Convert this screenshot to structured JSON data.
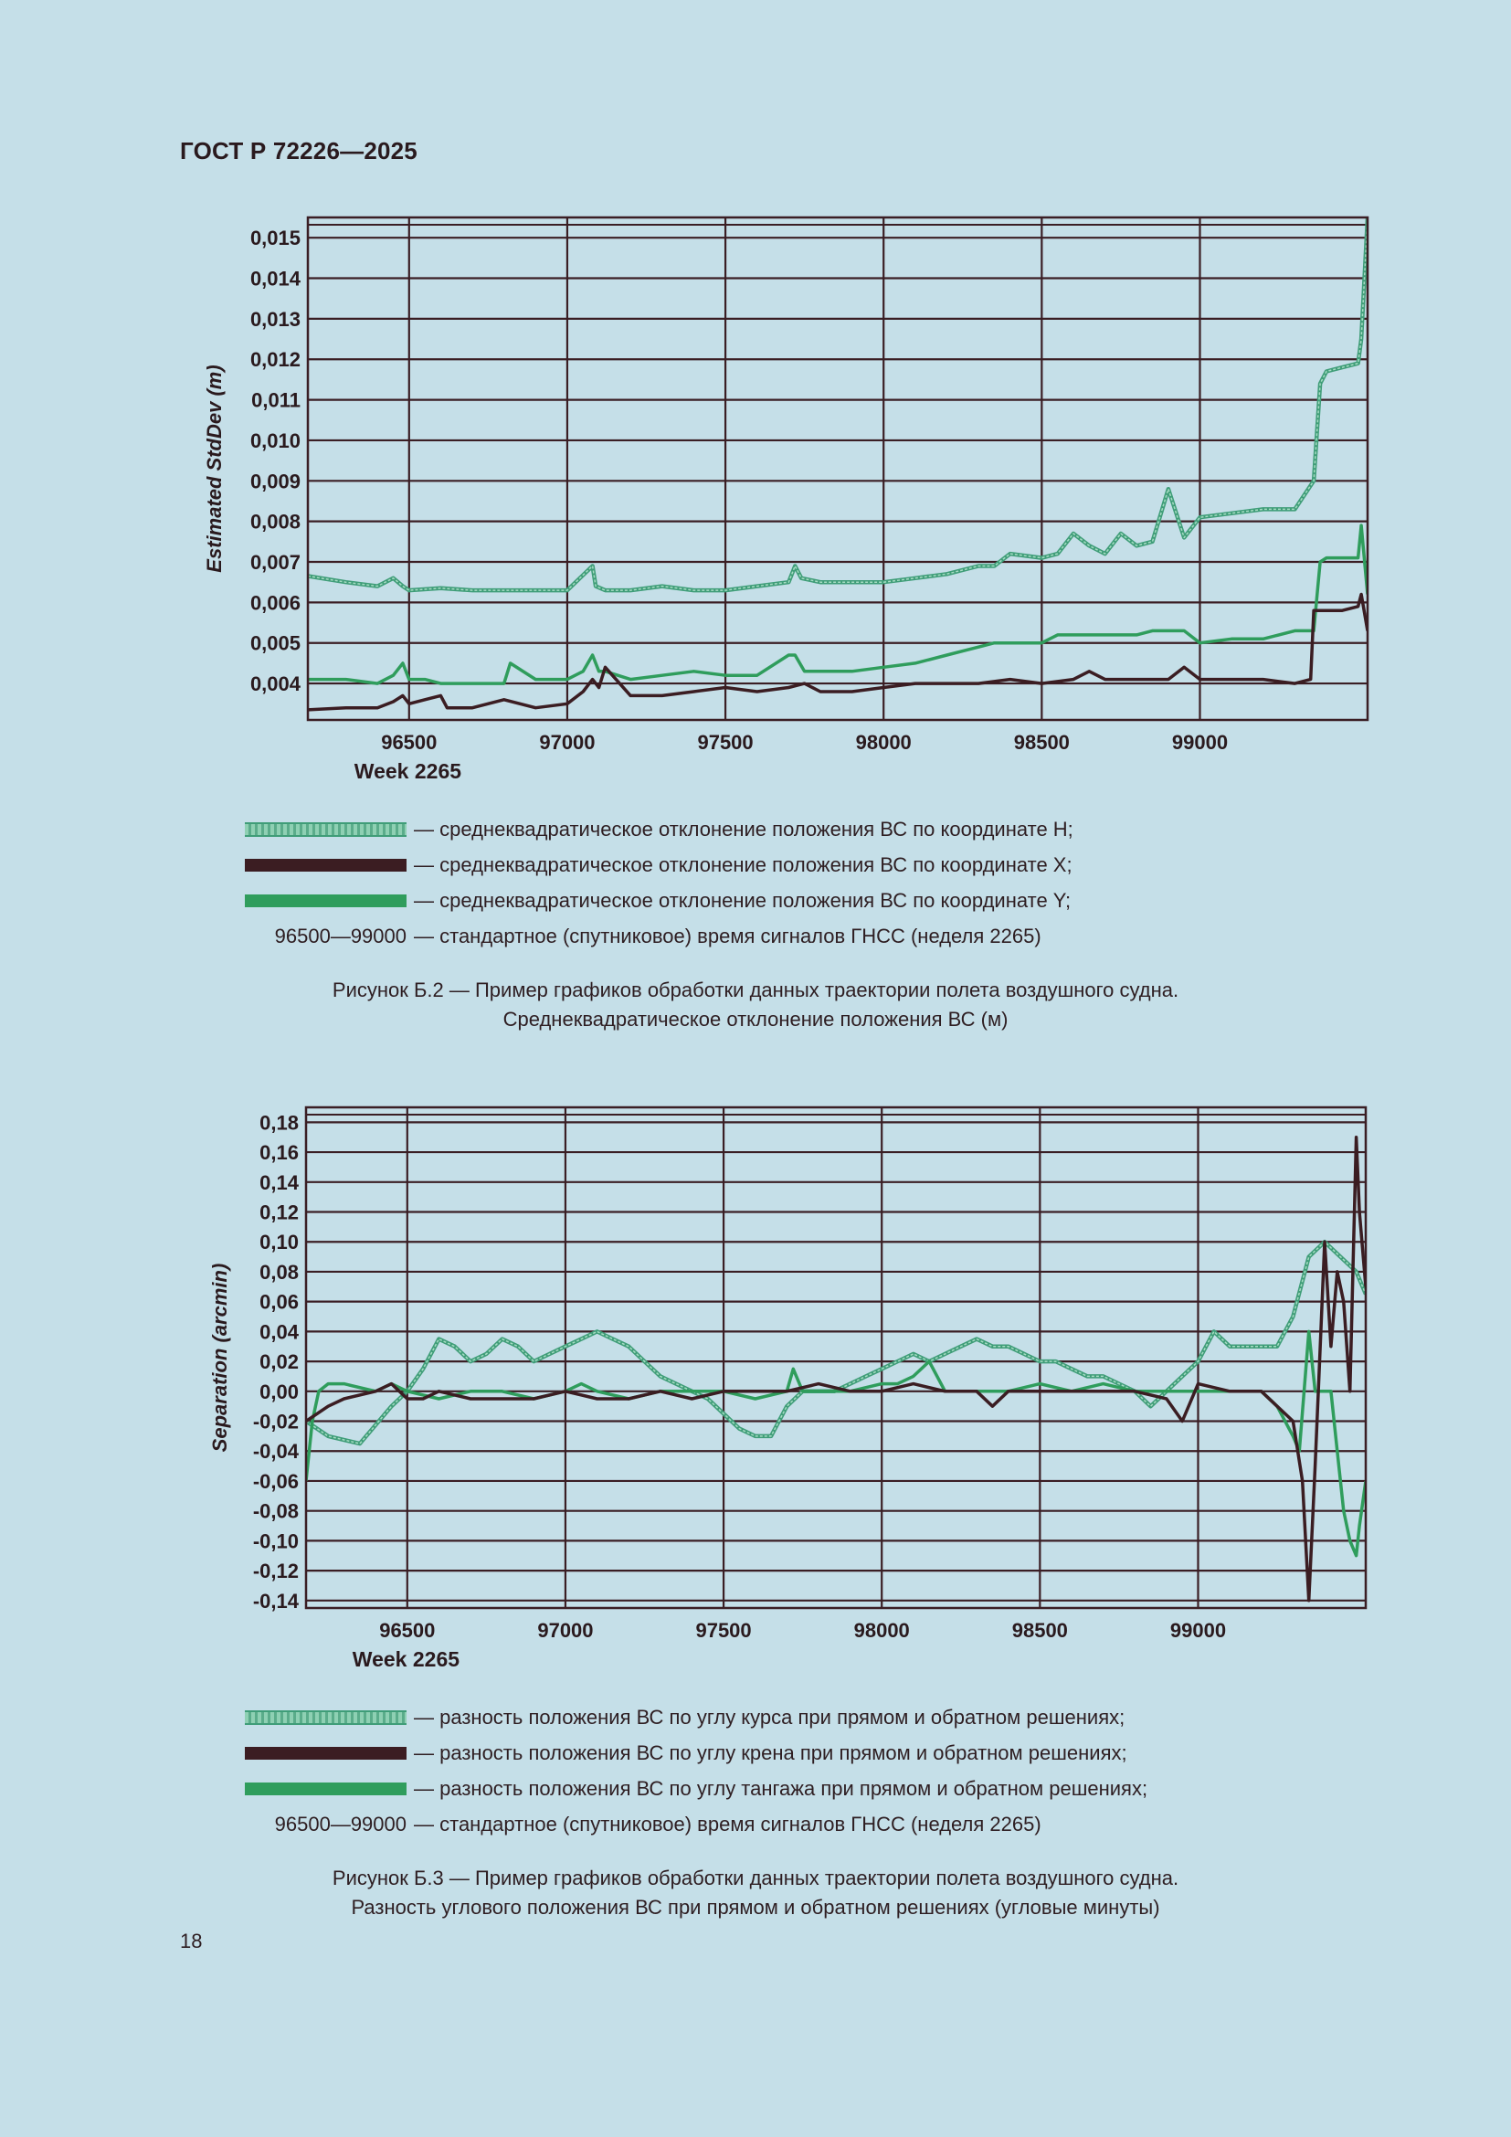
{
  "header": {
    "standard": "ГОСТ Р 72226—2025"
  },
  "page_number": "18",
  "figure_b2": {
    "legend": [
      {
        "key": "swatch-heading",
        "text": "— среднеквадратическое отклонение положения ВС по координате H;"
      },
      {
        "key": "swatch-roll",
        "text": "— среднеквадратическое отклонение положения ВС по координате X;"
      },
      {
        "key": "swatch-pitch",
        "text": "— среднеквадратическое отклонение положения ВС по координате Y;"
      },
      {
        "key": "96500—99000",
        "text": "— стандартное (спутниковое) время сигналов ГНСС (неделя 2265)"
      }
    ],
    "caption_line1": "Рисунок Б.2 — Пример графиков обработки данных траектории полета воздушного судна.",
    "caption_line2": "Среднеквадратическое отклонение положения ВС (м)"
  },
  "figure_b3": {
    "legend": [
      {
        "key": "swatch-heading",
        "text": "— разность положения ВС по углу курса при прямом и обратном решениях;"
      },
      {
        "key": "swatch-roll",
        "text": "— разность положения ВС по углу крена при прямом и обратном решениях;"
      },
      {
        "key": "swatch-pitch",
        "text": "— разность положения ВС по углу тангажа при прямом и обратном решениях;"
      },
      {
        "key": "96500—99000",
        "text": "— стандартное (спутниковое) время сигналов ГНСС (неделя 2265)"
      }
    ],
    "caption_line1": "Рисунок Б.3 — Пример графиков обработки данных траектории полета воздушного судна.",
    "caption_line2": "Разность углового положения ВС при прямом и обратном решениях (угловые минуты)"
  },
  "colors": {
    "heading": "#6ab89a",
    "roll": "#3b1d22",
    "pitch": "#2f9d5c",
    "grid": "#3a1e24",
    "background": "#c5dfe8"
  },
  "chart_data": [
    {
      "type": "line",
      "ylabel": "Estimated StdDev (m)",
      "xlabel": "Week 2265",
      "xlim": [
        96180,
        99530
      ],
      "ylim": [
        0.0031,
        0.0155
      ],
      "x_ticks": [
        96500,
        97000,
        97500,
        98000,
        98500,
        99000
      ],
      "x_tick_labels": [
        "96500",
        "97000",
        "97500",
        "98000",
        "98500",
        "99000"
      ],
      "y_ticks": [
        0.004,
        0.005,
        0.006,
        0.007,
        0.008,
        0.009,
        0.01,
        0.011,
        0.012,
        0.013,
        0.014,
        0.015
      ],
      "y_tick_labels": [
        "0,004",
        "0,005",
        "0,006",
        "0,007",
        "0,008",
        "0,009",
        "0,010",
        "0,011",
        "0,012",
        "0,013",
        "0,014",
        "0,015"
      ],
      "series": [
        {
          "color": "#6ab89a",
          "style": "heading",
          "x": [
            96180,
            96300,
            96400,
            96450,
            96480,
            96500,
            96600,
            96700,
            96800,
            96900,
            97000,
            97080,
            97090,
            97120,
            97200,
            97300,
            97400,
            97500,
            97600,
            97700,
            97720,
            97740,
            97800,
            97900,
            98000,
            98100,
            98200,
            98300,
            98350,
            98400,
            98500,
            98550,
            98600,
            98650,
            98700,
            98750,
            98800,
            98850,
            98900,
            98950,
            99000,
            99100,
            99200,
            99260,
            99300,
            99360,
            99380,
            99400,
            99450,
            99500,
            99510,
            99530
          ],
          "y": [
            0.00665,
            0.0065,
            0.0064,
            0.0066,
            0.0064,
            0.0063,
            0.00635,
            0.0063,
            0.0063,
            0.0063,
            0.0063,
            0.0069,
            0.0064,
            0.0063,
            0.0063,
            0.0064,
            0.0063,
            0.0063,
            0.0064,
            0.0065,
            0.0069,
            0.0066,
            0.0065,
            0.0065,
            0.0065,
            0.0066,
            0.0067,
            0.0069,
            0.0069,
            0.0072,
            0.0071,
            0.0072,
            0.0077,
            0.0074,
            0.0072,
            0.0077,
            0.0074,
            0.0075,
            0.0088,
            0.0076,
            0.0081,
            0.0082,
            0.0083,
            0.0083,
            0.0083,
            0.009,
            0.0114,
            0.0117,
            0.0118,
            0.0119,
            0.0125,
            0.0155
          ]
        },
        {
          "color": "#3b1d22",
          "style": "roll",
          "x": [
            96180,
            96300,
            96400,
            96450,
            96480,
            96500,
            96550,
            96600,
            96620,
            96700,
            96800,
            96900,
            97000,
            97050,
            97080,
            97100,
            97120,
            97200,
            97300,
            97400,
            97500,
            97600,
            97700,
            97750,
            97800,
            97900,
            98000,
            98100,
            98200,
            98300,
            98400,
            98500,
            98600,
            98650,
            98700,
            98800,
            98900,
            98950,
            99000,
            99100,
            99200,
            99300,
            99350,
            99360,
            99400,
            99450,
            99500,
            99510,
            99530
          ],
          "y": [
            0.00335,
            0.0034,
            0.0034,
            0.00355,
            0.0037,
            0.0035,
            0.0036,
            0.0037,
            0.0034,
            0.0034,
            0.0036,
            0.0034,
            0.0035,
            0.0038,
            0.0041,
            0.0039,
            0.0044,
            0.0037,
            0.0037,
            0.0038,
            0.0039,
            0.0038,
            0.0039,
            0.004,
            0.0038,
            0.0038,
            0.0039,
            0.004,
            0.004,
            0.004,
            0.0041,
            0.004,
            0.0041,
            0.0043,
            0.0041,
            0.0041,
            0.0041,
            0.0044,
            0.0041,
            0.0041,
            0.0041,
            0.004,
            0.0041,
            0.0058,
            0.0058,
            0.0058,
            0.0059,
            0.0062,
            0.0053
          ]
        },
        {
          "color": "#2f9d5c",
          "style": "pitch",
          "x": [
            96180,
            96300,
            96400,
            96450,
            96480,
            96500,
            96550,
            96600,
            96700,
            96800,
            96820,
            96900,
            97000,
            97050,
            97080,
            97100,
            97120,
            97200,
            97300,
            97400,
            97500,
            97600,
            97700,
            97720,
            97750,
            97800,
            97900,
            98000,
            98100,
            98200,
            98250,
            98300,
            98350,
            98400,
            98500,
            98550,
            98600,
            98700,
            98800,
            98850,
            98900,
            98950,
            99000,
            99100,
            99200,
            99300,
            99360,
            99380,
            99400,
            99450,
            99500,
            99510,
            99530
          ],
          "y": [
            0.0041,
            0.0041,
            0.004,
            0.0042,
            0.0045,
            0.0041,
            0.0041,
            0.004,
            0.004,
            0.004,
            0.0045,
            0.0041,
            0.0041,
            0.0043,
            0.0047,
            0.0043,
            0.0043,
            0.0041,
            0.0042,
            0.0043,
            0.0042,
            0.0042,
            0.0047,
            0.0047,
            0.0043,
            0.0043,
            0.0043,
            0.0044,
            0.0045,
            0.0047,
            0.0048,
            0.0049,
            0.005,
            0.005,
            0.005,
            0.0052,
            0.0052,
            0.0052,
            0.0052,
            0.0053,
            0.0053,
            0.0053,
            0.005,
            0.0051,
            0.0051,
            0.0053,
            0.0053,
            0.007,
            0.0071,
            0.0071,
            0.0071,
            0.0079,
            0.0062
          ]
        }
      ]
    },
    {
      "type": "line",
      "ylabel": "Separation (arcmin)",
      "xlabel": "Week 2265",
      "xlim": [
        96180,
        99530
      ],
      "ylim": [
        -0.145,
        0.19
      ],
      "x_ticks": [
        96500,
        97000,
        97500,
        98000,
        98500,
        99000
      ],
      "x_tick_labels": [
        "96500",
        "97000",
        "97500",
        "98000",
        "98500",
        "99000"
      ],
      "y_ticks": [
        -0.14,
        -0.12,
        -0.1,
        -0.08,
        -0.06,
        -0.04,
        -0.02,
        0.0,
        0.02,
        0.04,
        0.06,
        0.08,
        0.1,
        0.12,
        0.14,
        0.16,
        0.18
      ],
      "y_tick_labels": [
        "-0,14",
        "-0,12",
        "-0,10",
        "-0,08",
        "-0,06",
        "-0,04",
        "-0,02",
        "0,00",
        "0,02",
        "0,04",
        "0,06",
        "0,08",
        "0,10",
        "0,12",
        "0,14",
        "0,16",
        "0,18"
      ],
      "series": [
        {
          "color": "#6ab89a",
          "style": "heading",
          "x": [
            96180,
            96250,
            96350,
            96450,
            96500,
            96550,
            96600,
            96650,
            96700,
            96750,
            96800,
            96850,
            96900,
            96950,
            97000,
            97050,
            97100,
            97150,
            97200,
            97250,
            97300,
            97350,
            97400,
            97450,
            97500,
            97550,
            97600,
            97650,
            97700,
            97750,
            97800,
            97850,
            97900,
            97950,
            98000,
            98050,
            98100,
            98150,
            98200,
            98250,
            98300,
            98350,
            98400,
            98450,
            98500,
            98550,
            98600,
            98650,
            98700,
            98750,
            98800,
            98850,
            98900,
            98950,
            99000,
            99050,
            99100,
            99150,
            99200,
            99250,
            99300,
            99350,
            99400,
            99450,
            99500,
            99530
          ],
          "y": [
            -0.02,
            -0.03,
            -0.035,
            -0.01,
            0.0,
            0.015,
            0.035,
            0.03,
            0.02,
            0.025,
            0.035,
            0.03,
            0.02,
            0.025,
            0.03,
            0.035,
            0.04,
            0.035,
            0.03,
            0.02,
            0.01,
            0.005,
            0.0,
            -0.005,
            -0.015,
            -0.025,
            -0.03,
            -0.03,
            -0.01,
            0.0,
            0.0,
            0.0,
            0.005,
            0.01,
            0.015,
            0.02,
            0.025,
            0.02,
            0.025,
            0.03,
            0.035,
            0.03,
            0.03,
            0.025,
            0.02,
            0.02,
            0.015,
            0.01,
            0.01,
            0.005,
            0.0,
            -0.01,
            0.0,
            0.01,
            0.02,
            0.04,
            0.03,
            0.03,
            0.03,
            0.03,
            0.05,
            0.09,
            0.1,
            0.09,
            0.08,
            0.065
          ]
        },
        {
          "color": "#3b1d22",
          "style": "roll",
          "x": [
            96180,
            96250,
            96300,
            96400,
            96450,
            96500,
            96550,
            96600,
            96700,
            96800,
            96900,
            97000,
            97100,
            97200,
            97300,
            97400,
            97500,
            97600,
            97700,
            97800,
            97900,
            98000,
            98100,
            98200,
            98300,
            98350,
            98400,
            98500,
            98600,
            98700,
            98800,
            98900,
            98950,
            99000,
            99100,
            99200,
            99250,
            99300,
            99330,
            99350,
            99370,
            99380,
            99400,
            99420,
            99440,
            99460,
            99480,
            99500,
            99510,
            99530
          ],
          "y": [
            -0.02,
            -0.01,
            -0.005,
            0.0,
            0.005,
            -0.005,
            -0.005,
            0.0,
            -0.005,
            -0.005,
            -0.005,
            0.0,
            -0.005,
            -0.005,
            0.0,
            -0.005,
            0.0,
            0.0,
            0.0,
            0.005,
            0.0,
            0.0,
            0.005,
            0.0,
            0.0,
            -0.01,
            0.0,
            0.0,
            0.0,
            0.0,
            0.0,
            -0.005,
            -0.02,
            0.005,
            0.0,
            0.0,
            -0.01,
            -0.02,
            -0.06,
            -0.14,
            -0.05,
            0.0,
            0.1,
            0.03,
            0.08,
            0.06,
            0.0,
            0.17,
            0.12,
            0.07
          ]
        },
        {
          "color": "#2f9d5c",
          "style": "pitch",
          "x": [
            96180,
            96200,
            96220,
            96250,
            96300,
            96400,
            96450,
            96500,
            96600,
            96700,
            96800,
            96900,
            97000,
            97050,
            97100,
            97200,
            97300,
            97400,
            97500,
            97600,
            97700,
            97720,
            97750,
            97800,
            97900,
            98000,
            98050,
            98100,
            98150,
            98200,
            98300,
            98400,
            98500,
            98600,
            98700,
            98800,
            98900,
            99000,
            99100,
            99200,
            99250,
            99300,
            99320,
            99350,
            99370,
            99400,
            99420,
            99440,
            99460,
            99480,
            99500,
            99510,
            99530
          ],
          "y": [
            -0.06,
            -0.02,
            0.0,
            0.005,
            0.005,
            0.0,
            0.005,
            0.0,
            -0.005,
            0.0,
            0.0,
            -0.005,
            0.0,
            0.005,
            0.0,
            -0.005,
            0.0,
            0.0,
            0.0,
            -0.005,
            0.0,
            0.015,
            0.0,
            0.0,
            0.0,
            0.005,
            0.005,
            0.01,
            0.02,
            0.0,
            0.0,
            0.0,
            0.005,
            0.0,
            0.005,
            0.0,
            0.0,
            0.0,
            0.0,
            0.0,
            -0.01,
            -0.03,
            -0.04,
            0.04,
            0.0,
            0.0,
            0.0,
            -0.04,
            -0.08,
            -0.1,
            -0.11,
            -0.09,
            -0.06
          ]
        }
      ]
    }
  ]
}
